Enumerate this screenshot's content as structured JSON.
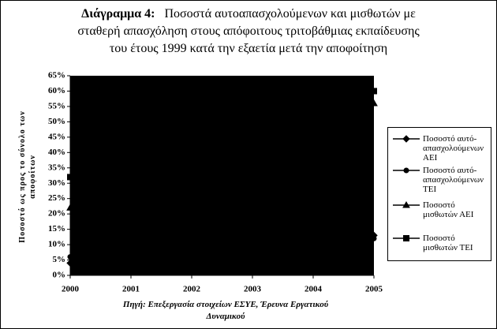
{
  "chart_data": {
    "type": "line",
    "title_label": "Διάγραμμα 4:",
    "title_lines": [
      "Ποσοστά αυτοαπασχολούμενων και μισθωτών με",
      "σταθερή απασχόληση στους απόφοιτους τριτοβάθμιας εκπαίδευσης",
      "του έτους 1999 κατά την εξαετία μετά την αποφοίτηση"
    ],
    "y_label": "Ποσοστό ως προς το σύνολο των αποφοίτων",
    "source": "Πηγή: Επεξεργασία στοιχείων ΕΣΥΕ, Έρευνα Εργατικού Δυναμικού",
    "x": [
      2000,
      2001,
      2002,
      2003,
      2004,
      2005
    ],
    "xlim": [
      2000,
      2005
    ],
    "xticks": [
      2000,
      2001,
      2002,
      2003,
      2004,
      2005
    ],
    "ylim": [
      0,
      65
    ],
    "yticks": [
      {
        "value": 0,
        "label": "0%"
      },
      {
        "value": 5,
        "label": "5%"
      },
      {
        "value": 10,
        "label": "10%"
      },
      {
        "value": 15,
        "label": "15%"
      },
      {
        "value": 20,
        "label": "20%"
      },
      {
        "value": 25,
        "label": "25%"
      },
      {
        "value": 30,
        "label": "30%"
      },
      {
        "value": 35,
        "label": "35%"
      },
      {
        "value": 40,
        "label": "40%"
      },
      {
        "value": 45,
        "label": "45%"
      },
      {
        "value": 50,
        "label": "50%"
      },
      {
        "value": 55,
        "label": "55%"
      },
      {
        "value": 60,
        "label": "60%"
      },
      {
        "value": 65,
        "label": "65%"
      }
    ],
    "plot_background": "#000000",
    "series": [
      {
        "name": "Ποσοστό αυτό-απασχολούμενων ΑΕΙ",
        "color": "#000000",
        "marker": "diamond",
        "values": [
          4,
          6,
          8,
          9,
          11,
          13
        ]
      },
      {
        "name": "Ποσοστό αυτό-απασχολούμενων ΤΕΙ",
        "color": "#000000",
        "marker": "circle",
        "values": [
          6,
          7,
          8,
          9,
          10,
          12
        ]
      },
      {
        "name": "Ποσοστό μισθωτών ΑΕΙ",
        "color": "#000000",
        "marker": "triangle",
        "values": [
          22,
          32,
          40,
          46,
          52,
          56
        ]
      },
      {
        "name": "Ποσοστό μισθωτών ΤΕΙ",
        "color": "#000000",
        "marker": "square",
        "values": [
          32,
          42,
          50,
          55,
          58,
          60
        ]
      }
    ]
  }
}
